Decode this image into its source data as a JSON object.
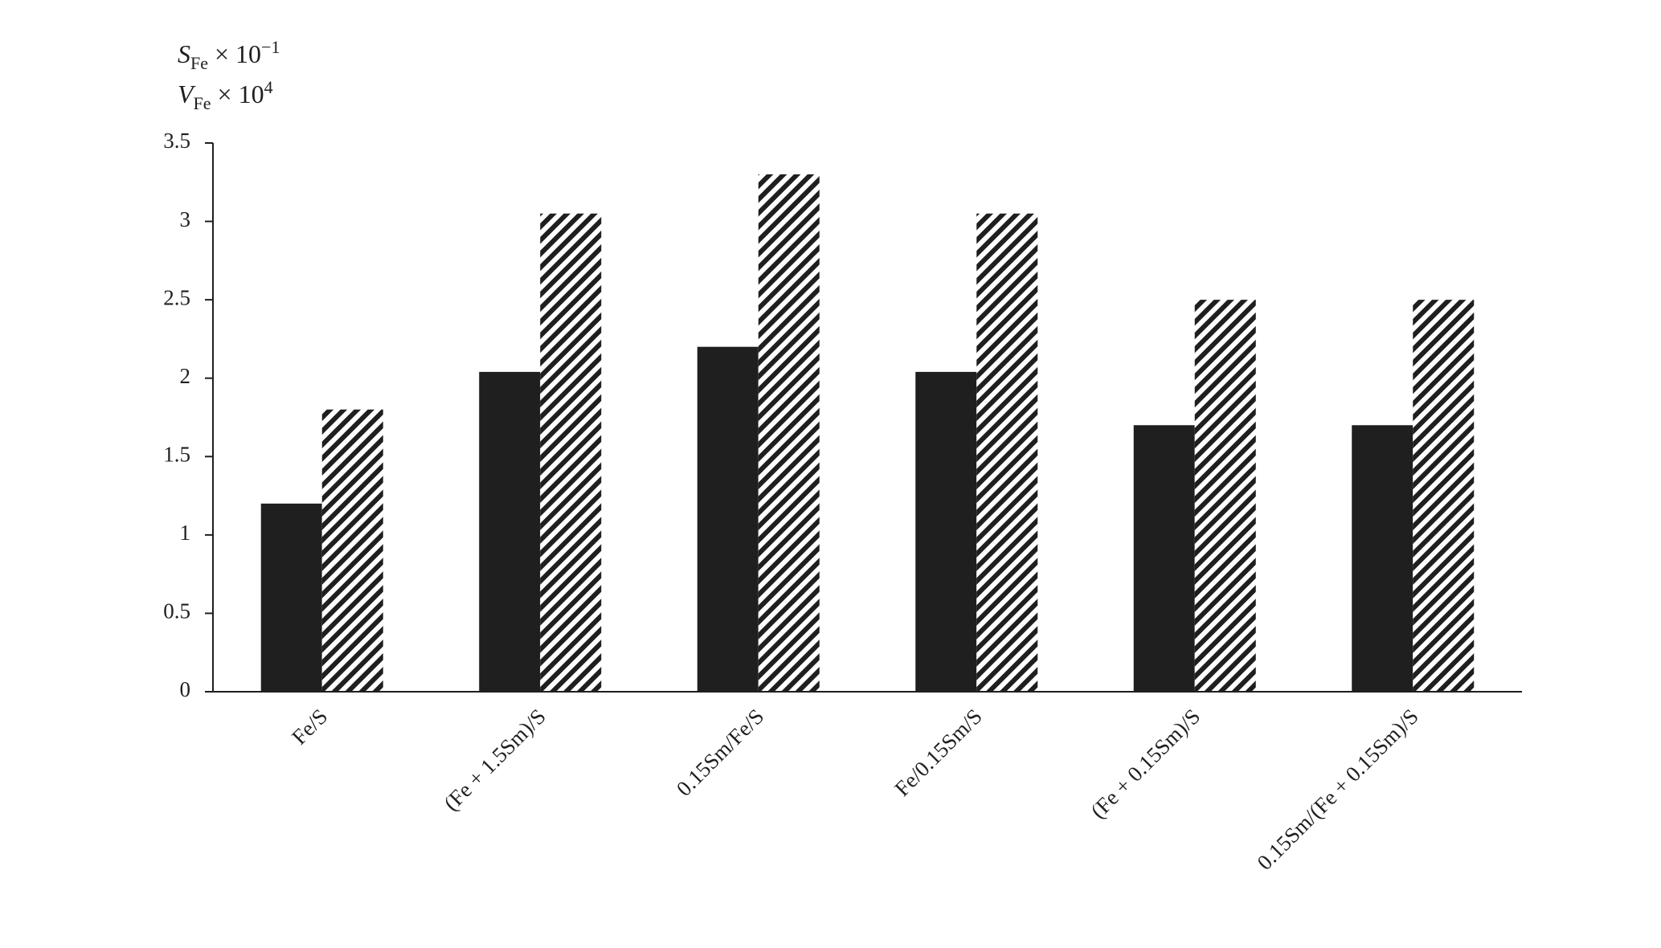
{
  "chart_data": {
    "type": "bar",
    "y_label_lines": [
      {
        "symbol": "S",
        "subscript": "Fe",
        "factor": "× 10",
        "exponent": "−1"
      },
      {
        "symbol": "V",
        "subscript": "Fe",
        "factor": "× 10",
        "exponent": "4"
      }
    ],
    "categories": [
      "Fe/S",
      "(Fe + 1.5Sm)/S",
      "0.15Sm/Fe/S",
      "Fe/0.15Sm/S",
      "(Fe + 0.15Sm)/S",
      "0.15Sm/(Fe + 0.15Sm)/S"
    ],
    "series": [
      {
        "color": "#1f1f1f",
        "pattern": "solid",
        "values": [
          1.2,
          2.04,
          2.2,
          2.04,
          1.7,
          1.7
        ]
      },
      {
        "color": "#1f1f1f",
        "pattern": "hatch",
        "values": [
          1.8,
          3.05,
          3.3,
          3.05,
          2.5,
          2.5
        ]
      }
    ],
    "ylim": [
      0,
      3.5
    ],
    "yticks": [
      0,
      0.5,
      1,
      1.5,
      2,
      2.5,
      3,
      3.5
    ],
    "grid": false
  }
}
